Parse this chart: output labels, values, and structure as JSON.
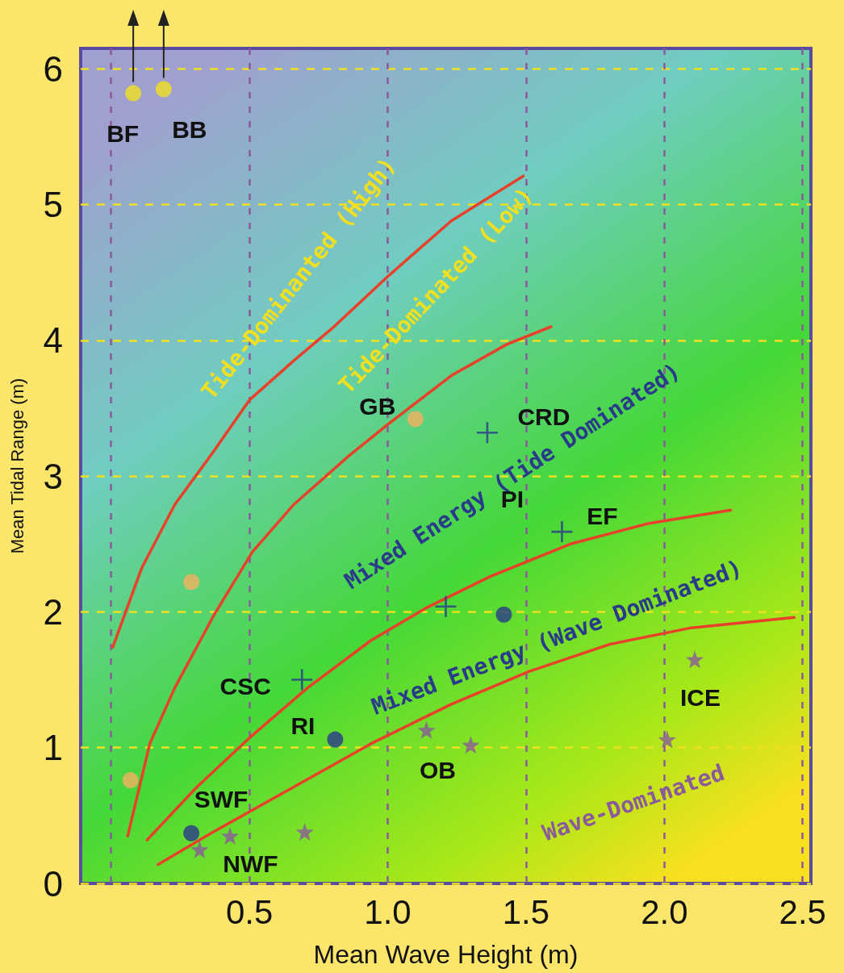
{
  "chart_data": {
    "type": "scatter",
    "xlabel": "Mean Wave Height (m)",
    "ylabel": "Mean Tidal Range (m)",
    "xlim": [
      -0.11,
      2.53
    ],
    "ylim": [
      0,
      6.15
    ],
    "xticks": [
      {
        "value": 0,
        "label": null
      },
      {
        "value": 0.5,
        "label": "0.5"
      },
      {
        "value": 1,
        "label": "1.0"
      },
      {
        "value": 1.5,
        "label": "1.5"
      },
      {
        "value": 2,
        "label": "2.0"
      },
      {
        "value": 2.5,
        "label": "2.5"
      }
    ],
    "yticks": [
      0,
      1,
      2,
      3,
      4,
      5,
      6
    ],
    "grid": true,
    "series": [
      {
        "type": "line",
        "marker": "none",
        "line_style": "solid",
        "color": "#e8412a",
        "x": [
          0.006,
          0.11,
          0.23,
          0.37,
          0.5,
          0.66,
          0.8,
          1.0,
          1.23,
          1.49
        ],
        "values": [
          1.74,
          2.32,
          2.79,
          3.18,
          3.56,
          3.85,
          4.09,
          4.47,
          4.88,
          5.21
        ]
      },
      {
        "type": "line",
        "marker": "none",
        "line_style": "solid",
        "color": "#e8412a",
        "x": [
          0.06,
          0.14,
          0.23,
          0.37,
          0.51,
          0.66,
          0.86,
          1.0,
          1.23,
          1.43,
          1.59
        ],
        "values": [
          0.35,
          1.03,
          1.44,
          1.97,
          2.44,
          2.79,
          3.15,
          3.38,
          3.74,
          3.97,
          4.1
        ]
      },
      {
        "type": "line",
        "marker": "none",
        "line_style": "solid",
        "color": "#e8412a",
        "x": [
          0.13,
          0.31,
          0.51,
          0.71,
          0.94,
          1.14,
          1.37,
          1.66,
          1.94,
          2.24
        ],
        "values": [
          0.32,
          0.71,
          1.09,
          1.44,
          1.79,
          2.03,
          2.26,
          2.5,
          2.65,
          2.75
        ]
      },
      {
        "type": "line",
        "marker": "none",
        "line_style": "solid",
        "color": "#e8412a",
        "x": [
          0.17,
          0.37,
          0.66,
          0.94,
          1.23,
          1.51,
          1.8,
          2.09,
          2.47
        ],
        "values": [
          0.14,
          0.38,
          0.71,
          1.03,
          1.32,
          1.56,
          1.76,
          1.88,
          1.96
        ]
      },
      {
        "marker": "circle",
        "color": "#f5b060",
        "x": [
          0.07,
          0.29,
          1.1
        ],
        "values": [
          0.76,
          2.22,
          3.42
        ]
      },
      {
        "marker": "circle",
        "color": "#f0e020",
        "x": [
          0.08,
          0.19
        ],
        "values": [
          5.82,
          5.85
        ]
      },
      {
        "marker": "cross",
        "color": "#2a3a8a",
        "x": [
          1.36,
          1.63,
          1.21,
          0.69
        ],
        "values": [
          3.32,
          2.59,
          2.04,
          1.5
        ]
      },
      {
        "marker": "circle",
        "color": "#2a3a8a",
        "x": [
          1.42,
          0.81,
          0.29
        ],
        "values": [
          1.98,
          1.06,
          0.37
        ]
      },
      {
        "marker": "star",
        "color": "#8a5a9a",
        "x": [
          2.11,
          2.01,
          1.3,
          1.14,
          0.7,
          0.43,
          0.32
        ],
        "values": [
          1.65,
          1.06,
          1.02,
          1.13,
          0.38,
          0.35,
          0.25
        ]
      }
    ],
    "annotations": [
      "Tide-Dominanted (High)",
      "Tide-Dominated (Low)",
      "Mixed Energy (Tide Dominated)",
      "Mixed Energy (Wave Dominated)",
      "Wave-Dominated",
      {
        "text": "BF",
        "x": 0.08,
        "y": 5.82
      },
      {
        "text": "BB",
        "x": 0.19,
        "y": 5.85
      },
      {
        "text": "GB",
        "x": 1.1,
        "y": 3.42
      },
      {
        "text": "CRD",
        "x": 1.36,
        "y": 3.32
      },
      "PI",
      {
        "text": "EF",
        "x": 1.63,
        "y": 2.59
      },
      {
        "text": "CSC",
        "x": 0.69,
        "y": 1.5
      },
      {
        "text": "RI",
        "x": 0.81,
        "y": 1.06
      },
      {
        "text": "OB",
        "x": 1.14,
        "y": 1.13
      },
      {
        "text": "SWF",
        "x": 0.29,
        "y": 0.37
      },
      {
        "text": "NWF",
        "x": 0.32,
        "y": 0.25
      },
      {
        "text": "ICE",
        "x": 2.11,
        "y": 1.65
      }
    ]
  }
}
